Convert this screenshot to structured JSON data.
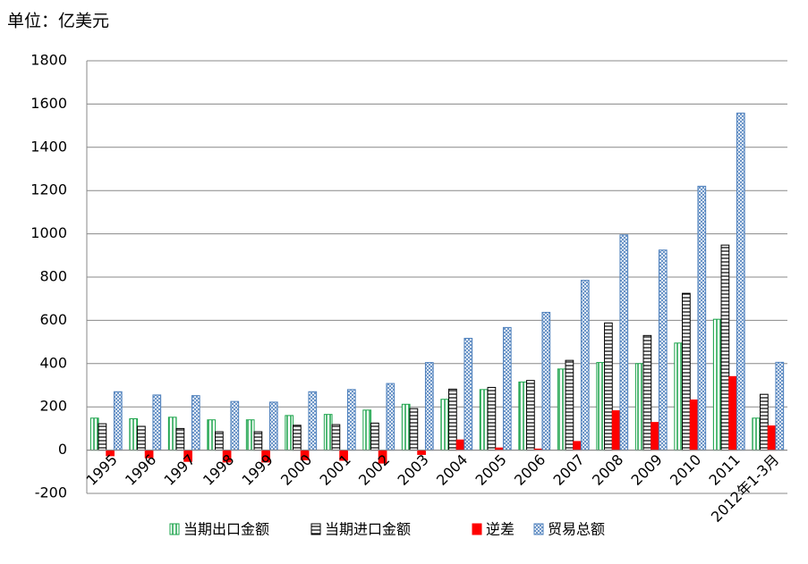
{
  "chart_data": {
    "type": "bar",
    "y_axis_label": "单位：亿美元",
    "categories": [
      "1995",
      "1996",
      "1997",
      "1998",
      "1999",
      "2000",
      "2001",
      "2002",
      "2003",
      "2004",
      "2005",
      "2006",
      "2007",
      "2008",
      "2009",
      "2010",
      "2011",
      "2012年1-3月"
    ],
    "series": [
      {
        "name": "当期出口金额",
        "color": "#1aa34a",
        "pattern": "vertical",
        "values": [
          148,
          145,
          152,
          140,
          140,
          160,
          165,
          185,
          212,
          235,
          280,
          315,
          375,
          405,
          400,
          495,
          605,
          148
        ]
      },
      {
        "name": "当期进口金额",
        "color": "#000000",
        "pattern": "horizontal",
        "values": [
          122,
          110,
          100,
          85,
          85,
          115,
          118,
          125,
          192,
          282,
          290,
          322,
          415,
          588,
          530,
          725,
          948,
          258
        ]
      },
      {
        "name": "逆差",
        "color": "#ff0000",
        "pattern": "solid",
        "values": [
          -26,
          -35,
          -52,
          -55,
          -55,
          -45,
          -47,
          -60,
          -20,
          47,
          10,
          5,
          40,
          182,
          128,
          232,
          340,
          112
        ]
      },
      {
        "name": "贸易总额",
        "color": "#4f81bd",
        "pattern": "cross",
        "values": [
          270,
          255,
          252,
          225,
          222,
          270,
          280,
          308,
          405,
          517,
          567,
          637,
          785,
          995,
          925,
          1220,
          1558,
          406
        ]
      }
    ],
    "ylim": [
      -200,
      1800
    ],
    "yticks": [
      -200,
      0,
      200,
      400,
      600,
      800,
      1000,
      1200,
      1400,
      1600,
      1800
    ],
    "grid": true
  }
}
